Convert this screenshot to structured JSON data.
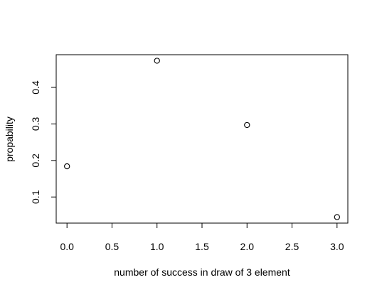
{
  "chart_data": {
    "type": "scatter",
    "title": "",
    "xlabel": "number of success in draw of 3 element",
    "ylabel": "propability",
    "x": [
      0,
      1,
      2,
      3
    ],
    "y": [
      0.184,
      0.473,
      0.297,
      0.045
    ],
    "x_ticks": [
      "0.0",
      "0.5",
      "1.0",
      "1.5",
      "2.0",
      "2.5",
      "3.0"
    ],
    "y_ticks": [
      "0.1",
      "0.2",
      "0.3",
      "0.4"
    ],
    "xlim": [
      -0.12,
      3.12
    ],
    "ylim": [
      0.0285,
      0.4895
    ],
    "grid": false,
    "legend": "none",
    "colors": {
      "point_stroke": "#000000",
      "axis": "#000000",
      "background": "#ffffff"
    }
  }
}
